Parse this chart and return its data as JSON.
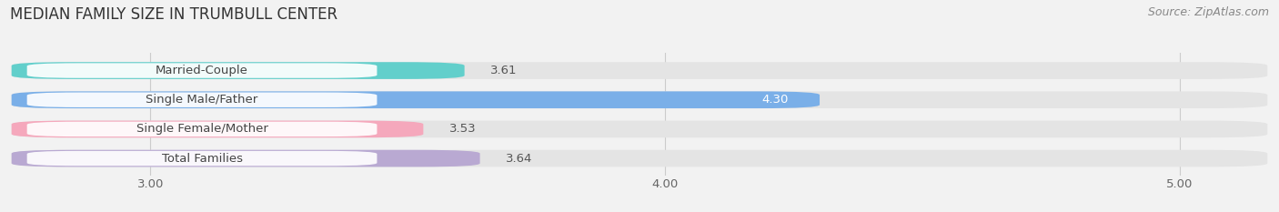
{
  "title": "MEDIAN FAMILY SIZE IN TRUMBULL CENTER",
  "source": "Source: ZipAtlas.com",
  "categories": [
    "Married-Couple",
    "Single Male/Father",
    "Single Female/Mother",
    "Total Families"
  ],
  "values": [
    3.61,
    4.3,
    3.53,
    3.64
  ],
  "bar_colors": [
    "#62cfcb",
    "#7aafe8",
    "#f5a8bc",
    "#b9a9d2"
  ],
  "xlim_min": 2.72,
  "xlim_max": 5.18,
  "xticks": [
    3.0,
    4.0,
    5.0
  ],
  "xtick_labels": [
    "3.00",
    "4.00",
    "5.00"
  ],
  "background_color": "#f2f2f2",
  "bar_bg_color": "#e4e4e4",
  "title_fontsize": 12,
  "label_fontsize": 9.5,
  "value_fontsize": 9.5,
  "source_fontsize": 9,
  "bar_height": 0.58
}
